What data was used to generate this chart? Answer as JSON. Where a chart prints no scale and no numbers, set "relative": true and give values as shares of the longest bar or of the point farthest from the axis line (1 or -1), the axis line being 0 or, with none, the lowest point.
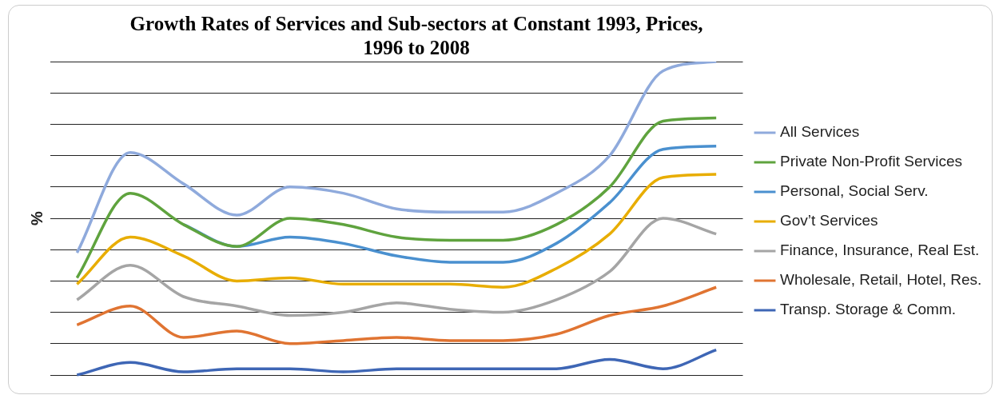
{
  "chart_data": {
    "type": "line",
    "title": "Growth Rates of Services and Sub-sectors at Constant 1993, Prices, 1996 to 2008",
    "ylabel": "%",
    "relative": true,
    "grid": "y",
    "legend": "right",
    "marker": "none",
    "line_style": "solid",
    "categories": [
      null,
      null,
      null,
      null,
      null,
      null,
      null,
      null,
      null,
      null,
      null,
      null,
      null
    ],
    "series": [
      {
        "name": "All Services",
        "color": "#8faadc",
        "values": [
          0.39,
          0.71,
          0.61,
          0.51,
          0.6,
          0.58,
          0.53,
          0.52,
          0.52,
          0.58,
          0.7,
          0.97,
          1
        ]
      },
      {
        "name": "Private Non-Profit Services",
        "color": "#5fa33e",
        "values": [
          0.31,
          0.58,
          0.48,
          0.41,
          0.5,
          0.48,
          0.44,
          0.43,
          0.43,
          0.48,
          0.6,
          0.81,
          0.82
        ]
      },
      {
        "name": "Personal, Social Serv.",
        "color": "#4a90cf",
        "values": [
          null,
          null,
          0.48,
          0.41,
          0.44,
          0.42,
          0.38,
          0.36,
          0.36,
          0.42,
          0.55,
          0.72,
          0.73
        ]
      },
      {
        "name": "Gov’t Services",
        "color": "#e8ad00",
        "values": [
          0.29,
          0.44,
          0.38,
          0.3,
          0.31,
          0.29,
          0.29,
          0.29,
          0.28,
          0.34,
          0.45,
          0.63,
          0.64
        ]
      },
      {
        "name": "Finance, Insurance, Real Est.",
        "color": "#a5a5a5",
        "values": [
          0.24,
          0.35,
          0.25,
          0.22,
          0.19,
          0.2,
          0.23,
          0.21,
          0.2,
          0.24,
          0.33,
          0.5,
          0.45
        ]
      },
      {
        "name": "Wholesale, Retail, Hotel, Res.",
        "color": "#e07432",
        "values": [
          0.16,
          0.22,
          0.12,
          0.14,
          0.1,
          0.11,
          0.12,
          0.11,
          0.11,
          0.13,
          0.19,
          0.22,
          0.28
        ]
      },
      {
        "name": "Transp. Storage & Comm.",
        "color": "#3e66b5",
        "values": [
          0,
          0.04,
          0.01,
          0.02,
          0.02,
          0.01,
          0.02,
          0.02,
          0.02,
          0.02,
          0.05,
          0.02,
          0.08
        ]
      }
    ]
  }
}
